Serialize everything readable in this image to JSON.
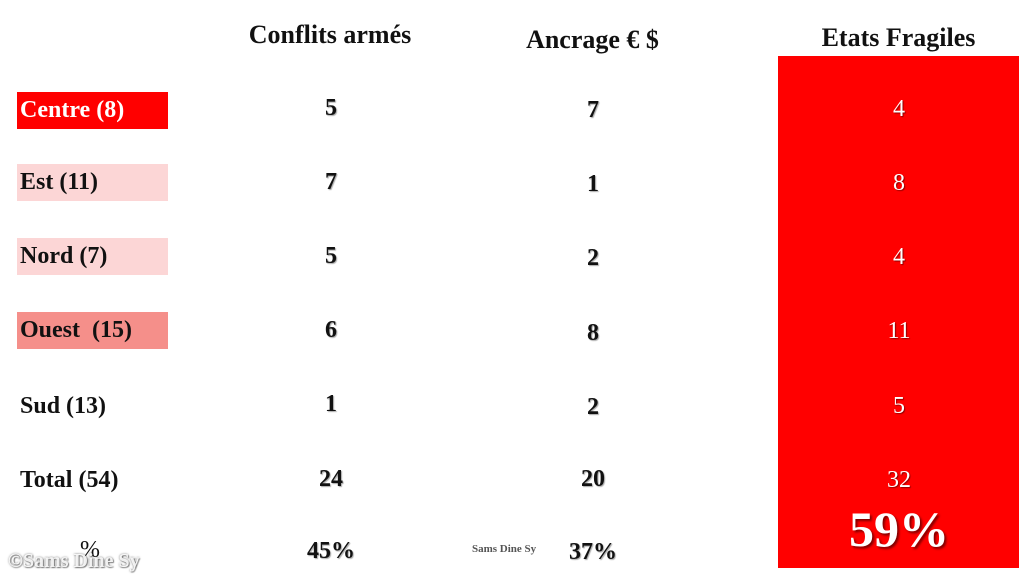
{
  "headers": {
    "conflits": "Conflits armés",
    "ancrage": "Ancrage € $",
    "etats": "Etats Fragiles"
  },
  "rows": [
    {
      "label": "Centre (8)",
      "conflits": "5",
      "ancrage": "7",
      "etats": "4",
      "highlight": "#ff0000",
      "label_color": "#ffffff"
    },
    {
      "label": "Est (11)",
      "conflits": "7",
      "ancrage": "1",
      "etats": "8",
      "highlight": "#fcd6d6",
      "label_color": "#111111"
    },
    {
      "label": "Nord (7)",
      "conflits": "5",
      "ancrage": "2",
      "etats": "4",
      "highlight": "#fcd6d6",
      "label_color": "#111111"
    },
    {
      "label": "Ouest  (15)",
      "conflits": "6",
      "ancrage": "8",
      "etats": "11",
      "highlight": "#f58f8a",
      "label_color": "#111111"
    },
    {
      "label": "Sud (13)",
      "conflits": "1",
      "ancrage": "2",
      "etats": "5",
      "highlight": "",
      "label_color": "#111111"
    },
    {
      "label": "Total (54)",
      "conflits": "24",
      "ancrage": "20",
      "etats": "32",
      "highlight": "",
      "label_color": "#111111"
    }
  ],
  "percent_row": {
    "label": "%",
    "conflits": "45%",
    "ancrage": "37%",
    "etats": "59%"
  },
  "watermarks": {
    "left": "©Sams Dine Sy",
    "middle": "Sams Dine Sy"
  },
  "colors": {
    "accent_red": "#ff0000",
    "light_pink": "#fcd6d6",
    "salmon": "#f58f8a"
  }
}
